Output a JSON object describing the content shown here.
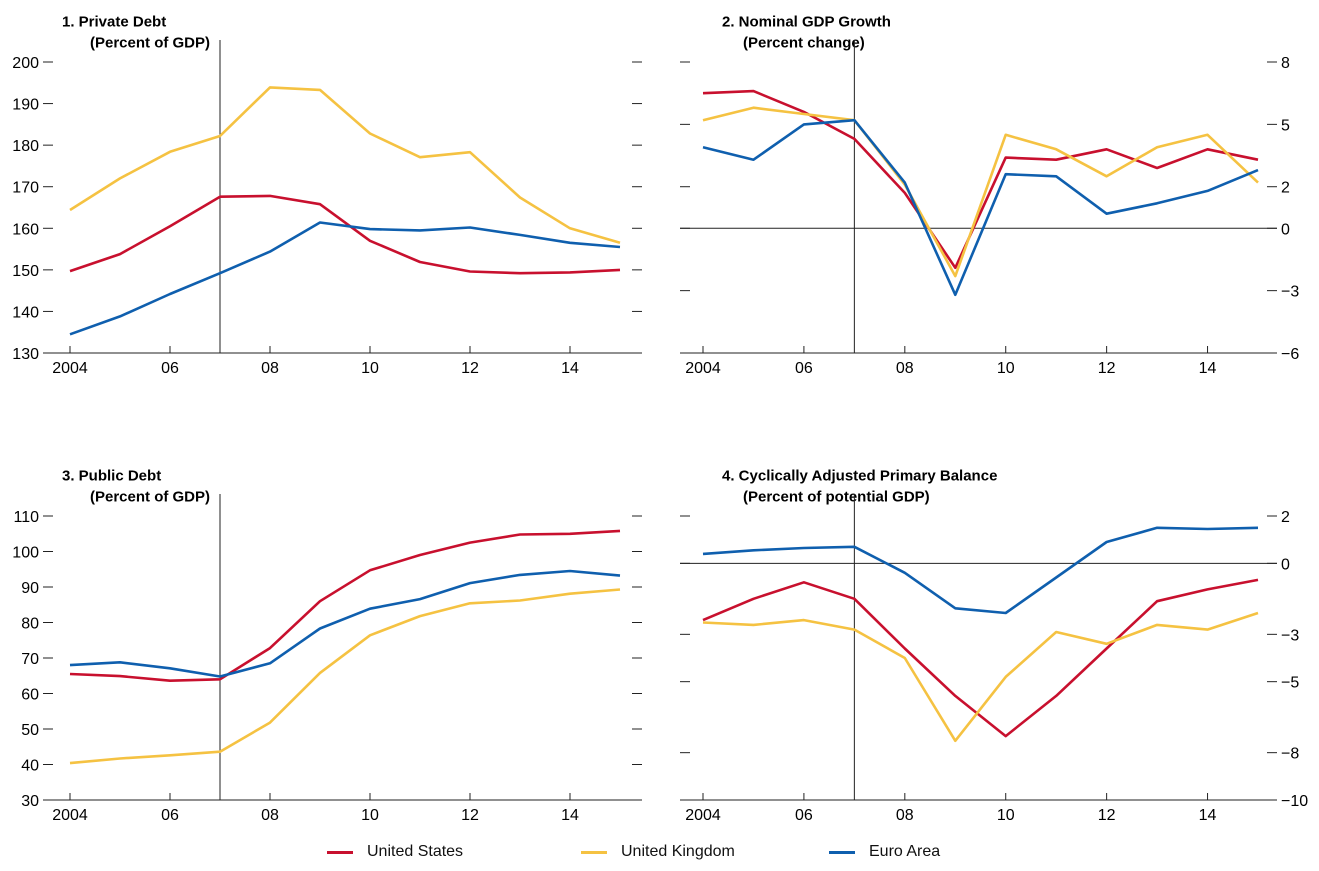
{
  "colors": {
    "us": "#c8102e",
    "uk": "#f5c242",
    "ea": "#0f5fae"
  },
  "legend": [
    {
      "key": "us",
      "label": "United States"
    },
    {
      "key": "uk",
      "label": "United Kingdom"
    },
    {
      "key": "ea",
      "label": "Euro Area"
    }
  ],
  "chart_data": [
    {
      "type": "line",
      "title": "1. Private Debt",
      "subtitle": "(Percent of GDP)",
      "x": [
        2004,
        2005,
        2006,
        2007,
        2008,
        2009,
        2010,
        2011,
        2012,
        2013,
        2014,
        2015
      ],
      "xticks": [
        2004,
        2006,
        2008,
        2010,
        2012,
        2014
      ],
      "xticklabels": [
        "2004",
        "06",
        "08",
        "10",
        "12",
        "14"
      ],
      "xlim": [
        2004,
        2015
      ],
      "ylim": [
        130,
        200
      ],
      "yticks": [
        130,
        140,
        150,
        160,
        170,
        180,
        190,
        200
      ],
      "yticklabels": [
        "130",
        "140",
        "150",
        "160",
        "170",
        "180",
        "190",
        "200"
      ],
      "ytick_side": "left",
      "vline_x": 2007,
      "zero_line": false,
      "series": [
        {
          "name": "United States",
          "key": "us",
          "values": [
            149.7,
            153.8,
            160.5,
            167.6,
            167.8,
            165.8,
            157.0,
            151.9,
            149.6,
            149.2,
            149.4,
            150.0
          ]
        },
        {
          "name": "United Kingdom",
          "key": "uk",
          "values": [
            164.4,
            172.0,
            178.4,
            182.2,
            193.9,
            193.3,
            182.8,
            177.1,
            178.3,
            167.4,
            160.0,
            156.5
          ]
        },
        {
          "name": "Euro Area",
          "key": "ea",
          "values": [
            134.5,
            138.8,
            144.2,
            149.2,
            154.4,
            161.4,
            159.8,
            159.5,
            160.2,
            158.4,
            156.5,
            155.5
          ]
        }
      ]
    },
    {
      "type": "line",
      "title": "2. Nominal GDP Growth",
      "subtitle": "(Percent change)",
      "x": [
        2004,
        2005,
        2006,
        2007,
        2008,
        2009,
        2010,
        2011,
        2012,
        2013,
        2014,
        2015
      ],
      "xticks": [
        2004,
        2006,
        2008,
        2010,
        2012,
        2014
      ],
      "xticklabels": [
        "2004",
        "06",
        "08",
        "10",
        "12",
        "14"
      ],
      "xlim": [
        2004,
        2015
      ],
      "ylim": [
        -6,
        8
      ],
      "yticks": [
        -6,
        -4.5,
        -3,
        -1.5,
        0,
        1.5,
        3,
        4.5,
        6,
        7.5,
        8
      ],
      "yticks_labeled": [
        {
          "v": -6,
          "label": "−6"
        },
        {
          "v": -3,
          "label": "−3"
        },
        {
          "v": 0,
          "label": "0"
        },
        {
          "v": 2,
          "label": "2"
        },
        {
          "v": 5,
          "label": "5"
        },
        {
          "v": 8,
          "label": "8"
        }
      ],
      "ytick_side": "right",
      "vline_x": 2007,
      "zero_line": true,
      "series": [
        {
          "name": "United States",
          "key": "us",
          "values": [
            6.5,
            6.6,
            5.6,
            4.3,
            1.7,
            -1.9,
            3.4,
            3.3,
            3.8,
            2.9,
            3.8,
            3.3
          ]
        },
        {
          "name": "United Kingdom",
          "key": "uk",
          "values": [
            5.2,
            5.8,
            5.5,
            5.2,
            2.1,
            -2.3,
            4.5,
            3.8,
            2.5,
            3.9,
            4.5,
            2.2
          ]
        },
        {
          "name": "Euro Area",
          "key": "ea",
          "values": [
            3.9,
            3.3,
            5.0,
            5.2,
            2.2,
            -3.2,
            2.6,
            2.5,
            0.7,
            1.2,
            1.8,
            2.8
          ]
        }
      ]
    },
    {
      "type": "line",
      "title": "3. Public Debt",
      "subtitle": "(Percent of GDP)",
      "x": [
        2004,
        2005,
        2006,
        2007,
        2008,
        2009,
        2010,
        2011,
        2012,
        2013,
        2014,
        2015
      ],
      "xticks": [
        2004,
        2006,
        2008,
        2010,
        2012,
        2014
      ],
      "xticklabels": [
        "2004",
        "06",
        "08",
        "10",
        "12",
        "14"
      ],
      "xlim": [
        2004,
        2015
      ],
      "ylim": [
        30,
        110
      ],
      "yticks": [
        30,
        40,
        50,
        60,
        70,
        80,
        90,
        100,
        110
      ],
      "yticklabels": [
        "30",
        "40",
        "50",
        "60",
        "70",
        "80",
        "90",
        "100",
        "110"
      ],
      "ytick_side": "left",
      "vline_x": 2007,
      "zero_line": false,
      "series": [
        {
          "name": "United States",
          "key": "us",
          "values": [
            65.5,
            64.9,
            63.6,
            64.0,
            72.8,
            86.0,
            94.7,
            99.0,
            102.5,
            104.8,
            105.0,
            105.8
          ]
        },
        {
          "name": "United Kingdom",
          "key": "uk",
          "values": [
            40.4,
            41.7,
            42.6,
            43.6,
            51.8,
            65.8,
            76.4,
            81.8,
            85.4,
            86.2,
            88.1,
            89.3
          ]
        },
        {
          "name": "Euro Area",
          "key": "ea",
          "values": [
            68.0,
            68.8,
            67.1,
            64.8,
            68.5,
            78.3,
            83.9,
            86.6,
            91.1,
            93.4,
            94.5,
            93.2
          ]
        }
      ]
    },
    {
      "type": "line",
      "title": "4. Cyclically Adjusted Primary Balance",
      "subtitle": "(Percent of potential GDP)",
      "x": [
        2004,
        2005,
        2006,
        2007,
        2008,
        2009,
        2010,
        2011,
        2012,
        2013,
        2014,
        2015
      ],
      "xticks": [
        2004,
        2006,
        2008,
        2010,
        2012,
        2014
      ],
      "xticklabels": [
        "2004",
        "06",
        "08",
        "10",
        "12",
        "14"
      ],
      "xlim": [
        2004,
        2015
      ],
      "ylim": [
        -10,
        2
      ],
      "yticks": [
        -10,
        -8.5,
        -7,
        -5.5,
        -4,
        -2.5,
        -1,
        0.5,
        2
      ],
      "yticks_labeled": [
        {
          "v": -10,
          "label": "−10"
        },
        {
          "v": -8,
          "label": "−8"
        },
        {
          "v": -5,
          "label": "−5"
        },
        {
          "v": -3,
          "label": "−3"
        },
        {
          "v": 0,
          "label": "0"
        },
        {
          "v": 2,
          "label": "2"
        }
      ],
      "ytick_side": "right",
      "vline_x": 2007,
      "zero_line": true,
      "series": [
        {
          "name": "United States",
          "key": "us",
          "values": [
            -2.4,
            -1.5,
            -0.8,
            -1.5,
            -3.6,
            -5.6,
            -7.3,
            -5.6,
            -3.6,
            -1.6,
            -1.1,
            -0.7
          ]
        },
        {
          "name": "United Kingdom",
          "key": "uk",
          "values": [
            -2.5,
            -2.6,
            -2.4,
            -2.8,
            -4.0,
            -7.5,
            -4.8,
            -2.9,
            -3.4,
            -2.6,
            -2.8,
            -2.1
          ]
        },
        {
          "name": "Euro Area",
          "key": "ea",
          "values": [
            0.4,
            0.55,
            0.65,
            0.7,
            -0.4,
            -1.9,
            -2.1,
            -0.6,
            0.9,
            1.5,
            1.45,
            1.5
          ]
        }
      ]
    }
  ]
}
